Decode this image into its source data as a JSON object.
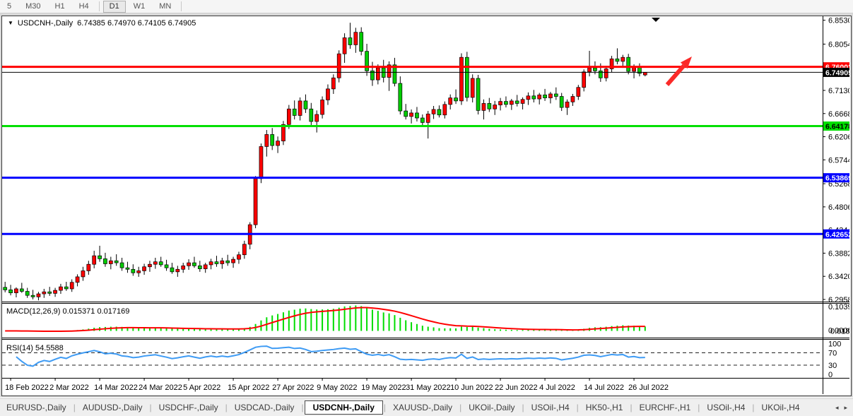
{
  "toolbar": {
    "timeframes": [
      "5",
      "M30",
      "H1",
      "H4",
      "D1",
      "W1",
      "MN"
    ],
    "active_timeframe": "D1"
  },
  "chart": {
    "title_symbol": "USDCNH-,Daily",
    "title_ohlc": "6.74385 6.74970 6.74105 6.74905",
    "caret_icon": "▼"
  },
  "chart_data": {
    "type": "candlestick",
    "symbol": "USDCNH-",
    "timeframe": "Daily",
    "current_bar": {
      "open": 6.74385,
      "high": 6.7497,
      "low": 6.74105,
      "close": 6.74905
    },
    "up_color": "#FF0000",
    "down_color": "#00CC00",
    "price_axis_ticks": [
      "6.85300",
      "6.80540",
      "6.71300",
      "6.66680",
      "6.62060",
      "6.57440",
      "6.52680",
      "6.48060",
      "6.43440",
      "6.38820",
      "6.34200",
      "6.29580"
    ],
    "time_axis_ticks": [
      "18 Feb 2022",
      "2 Mar 2022",
      "14 Mar 2022",
      "24 Mar 2022",
      "5 Apr 2022",
      "15 Apr 2022",
      "27 Apr 2022",
      "9 May 2022",
      "19 May 2022",
      "31 May 2022",
      "10 Jun 2022",
      "22 Jun 2022",
      "4 Jul 2022",
      "14 Jul 2022",
      "26 Jul 2022"
    ],
    "horizontal_lines": [
      {
        "price": 6.76002,
        "label": "6.76002",
        "color": "#FF0000",
        "thickness": 3,
        "text": "#FFFFFF"
      },
      {
        "price": 6.74905,
        "label": "6.74905",
        "color": "#000000",
        "thickness": 1,
        "text": "#FFFFFF"
      },
      {
        "price": 6.64178,
        "label": "6.64178",
        "color": "#00E000",
        "thickness": 3,
        "text": "#000000"
      },
      {
        "price": 6.53869,
        "label": "6.53869",
        "color": "#0000FF",
        "thickness": 3,
        "text": "#FFFFFF"
      },
      {
        "price": 6.42652,
        "label": "6.42652",
        "color": "#0000FF",
        "thickness": 3,
        "text": "#FFFFFF"
      }
    ],
    "candles_ohlc": [
      [
        6.32,
        6.331,
        6.31,
        6.315
      ],
      [
        6.315,
        6.325,
        6.304,
        6.309
      ],
      [
        6.309,
        6.32,
        6.3,
        6.317
      ],
      [
        6.317,
        6.329,
        6.309,
        6.312
      ],
      [
        6.312,
        6.319,
        6.299,
        6.304
      ],
      [
        6.304,
        6.315,
        6.296,
        6.301
      ],
      [
        6.301,
        6.311,
        6.294,
        6.307
      ],
      [
        6.307,
        6.317,
        6.299,
        6.311
      ],
      [
        6.311,
        6.321,
        6.303,
        6.308
      ],
      [
        6.308,
        6.319,
        6.301,
        6.314
      ],
      [
        6.314,
        6.327,
        6.307,
        6.321
      ],
      [
        6.321,
        6.331,
        6.313,
        6.317
      ],
      [
        6.317,
        6.336,
        6.311,
        6.33
      ],
      [
        6.33,
        6.346,
        6.322,
        6.341
      ],
      [
        6.341,
        6.361,
        6.333,
        6.353
      ],
      [
        6.353,
        6.373,
        6.345,
        6.366
      ],
      [
        6.366,
        6.393,
        6.358,
        6.383
      ],
      [
        6.383,
        6.403,
        6.371,
        6.377
      ],
      [
        6.377,
        6.389,
        6.361,
        6.367
      ],
      [
        6.367,
        6.381,
        6.356,
        6.373
      ],
      [
        6.373,
        6.386,
        6.363,
        6.369
      ],
      [
        6.369,
        6.379,
        6.353,
        6.359
      ],
      [
        6.359,
        6.371,
        6.349,
        6.356
      ],
      [
        6.356,
        6.366,
        6.343,
        6.349
      ],
      [
        6.349,
        6.361,
        6.341,
        6.353
      ],
      [
        6.353,
        6.367,
        6.345,
        6.361
      ],
      [
        6.361,
        6.373,
        6.351,
        6.366
      ],
      [
        6.366,
        6.379,
        6.357,
        6.371
      ],
      [
        6.371,
        6.381,
        6.361,
        6.365
      ],
      [
        6.365,
        6.375,
        6.353,
        6.359
      ],
      [
        6.359,
        6.369,
        6.347,
        6.351
      ],
      [
        6.351,
        6.363,
        6.341,
        6.356
      ],
      [
        6.356,
        6.369,
        6.349,
        6.363
      ],
      [
        6.363,
        6.376,
        6.355,
        6.369
      ],
      [
        6.369,
        6.381,
        6.359,
        6.363
      ],
      [
        6.363,
        6.373,
        6.351,
        6.357
      ],
      [
        6.357,
        6.369,
        6.349,
        6.365
      ],
      [
        6.365,
        6.377,
        6.356,
        6.371
      ],
      [
        6.371,
        6.383,
        6.361,
        6.367
      ],
      [
        6.367,
        6.379,
        6.357,
        6.373
      ],
      [
        6.373,
        6.385,
        6.363,
        6.369
      ],
      [
        6.369,
        6.381,
        6.359,
        6.376
      ],
      [
        6.376,
        6.391,
        6.367,
        6.385
      ],
      [
        6.385,
        6.413,
        6.377,
        6.406
      ],
      [
        6.406,
        6.45,
        6.396,
        6.445
      ],
      [
        6.445,
        6.542,
        6.438,
        6.537
      ],
      [
        6.537,
        6.607,
        6.528,
        6.601
      ],
      [
        6.601,
        6.634,
        6.581,
        6.625
      ],
      [
        6.625,
        6.638,
        6.594,
        6.603
      ],
      [
        6.603,
        6.621,
        6.588,
        6.612
      ],
      [
        6.612,
        6.652,
        6.604,
        6.645
      ],
      [
        6.645,
        6.684,
        6.636,
        6.676
      ],
      [
        6.676,
        6.693,
        6.655,
        6.663
      ],
      [
        6.663,
        6.699,
        6.653,
        6.692
      ],
      [
        6.692,
        6.705,
        6.668,
        6.676
      ],
      [
        6.676,
        6.688,
        6.641,
        6.651
      ],
      [
        6.651,
        6.673,
        6.629,
        6.665
      ],
      [
        6.665,
        6.701,
        6.657,
        6.694
      ],
      [
        6.694,
        6.725,
        6.684,
        6.716
      ],
      [
        6.716,
        6.745,
        6.706,
        6.738
      ],
      [
        6.738,
        6.793,
        6.729,
        6.786
      ],
      [
        6.786,
        6.827,
        6.768,
        6.818
      ],
      [
        6.818,
        6.848,
        6.796,
        6.804
      ],
      [
        6.804,
        6.838,
        6.788,
        6.829
      ],
      [
        6.829,
        6.839,
        6.783,
        6.791
      ],
      [
        6.791,
        6.806,
        6.742,
        6.752
      ],
      [
        6.752,
        6.77,
        6.722,
        6.734
      ],
      [
        6.734,
        6.765,
        6.725,
        6.758
      ],
      [
        6.758,
        6.774,
        6.729,
        6.739
      ],
      [
        6.739,
        6.771,
        6.712,
        6.764
      ],
      [
        6.764,
        6.778,
        6.721,
        6.727
      ],
      [
        6.727,
        6.741,
        6.665,
        6.672
      ],
      [
        6.672,
        6.686,
        6.655,
        6.661
      ],
      [
        6.661,
        6.675,
        6.647,
        6.668
      ],
      [
        6.668,
        6.68,
        6.651,
        6.658
      ],
      [
        6.658,
        6.665,
        6.643,
        6.649
      ],
      [
        6.649,
        6.672,
        6.617,
        6.666
      ],
      [
        6.666,
        6.682,
        6.656,
        6.675
      ],
      [
        6.675,
        6.683,
        6.659,
        6.664
      ],
      [
        6.664,
        6.691,
        6.657,
        6.685
      ],
      [
        6.685,
        6.705,
        6.675,
        6.698
      ],
      [
        6.698,
        6.715,
        6.686,
        6.692
      ],
      [
        6.692,
        6.787,
        6.684,
        6.779
      ],
      [
        6.779,
        6.79,
        6.691,
        6.699
      ],
      [
        6.699,
        6.745,
        6.689,
        6.737
      ],
      [
        6.737,
        6.744,
        6.665,
        6.673
      ],
      [
        6.673,
        6.695,
        6.655,
        6.687
      ],
      [
        6.687,
        6.698,
        6.67,
        6.676
      ],
      [
        6.676,
        6.692,
        6.664,
        6.684
      ],
      [
        6.684,
        6.698,
        6.673,
        6.691
      ],
      [
        6.691,
        6.701,
        6.679,
        6.685
      ],
      [
        6.685,
        6.696,
        6.674,
        6.692
      ],
      [
        6.692,
        6.704,
        6.681,
        6.687
      ],
      [
        6.687,
        6.699,
        6.675,
        6.695
      ],
      [
        6.695,
        6.709,
        6.684,
        6.702
      ],
      [
        6.702,
        6.714,
        6.689,
        6.696
      ],
      [
        6.696,
        6.708,
        6.685,
        6.704
      ],
      [
        6.704,
        6.716,
        6.692,
        6.698
      ],
      [
        6.698,
        6.71,
        6.687,
        6.706
      ],
      [
        6.706,
        6.719,
        6.694,
        6.701
      ],
      [
        6.701,
        6.708,
        6.672,
        6.679
      ],
      [
        6.679,
        6.695,
        6.664,
        6.69
      ],
      [
        6.69,
        6.706,
        6.682,
        6.701
      ],
      [
        6.701,
        6.724,
        6.694,
        6.719
      ],
      [
        6.719,
        6.755,
        6.711,
        6.75
      ],
      [
        6.75,
        6.792,
        6.741,
        6.758
      ],
      [
        6.758,
        6.771,
        6.745,
        6.752
      ],
      [
        6.752,
        6.767,
        6.73,
        6.738
      ],
      [
        6.738,
        6.762,
        6.731,
        6.756
      ],
      [
        6.756,
        6.782,
        6.749,
        6.776
      ],
      [
        6.776,
        6.797,
        6.765,
        6.771
      ],
      [
        6.771,
        6.784,
        6.758,
        6.779
      ],
      [
        6.779,
        6.786,
        6.745,
        6.751
      ],
      [
        6.751,
        6.765,
        6.737,
        6.76
      ],
      [
        6.76,
        6.767,
        6.741,
        6.747
      ],
      [
        6.74385,
        6.7497,
        6.74105,
        6.74905
      ]
    ],
    "bars_per_time_tick": 8,
    "first_time_tick_bar": 1,
    "indicators": {
      "macd": {
        "label": "MACD(12,26,9)",
        "value": "0.015371",
        "signal": "0.017169",
        "params": [
          12,
          26,
          9
        ],
        "scale_max_label": "0.103934",
        "scale_bottom_labels": [
          "0.00000",
          "0.018297"
        ],
        "histogram_color": "#00DD00",
        "signal_color": "#FF0000"
      },
      "rsi": {
        "label": "RSI(14)",
        "value": "54.5588",
        "period": 14,
        "levels": [
          "100",
          "70",
          "30",
          "0"
        ],
        "level_lines": [
          70,
          30
        ],
        "line_color": "#3E9BF4"
      }
    },
    "annotations": {
      "arrow": {
        "color": "#FB2A28",
        "direction": "up-right"
      },
      "shift_marker": "▼"
    }
  },
  "tabs": {
    "items": [
      "EURUSD-,Daily",
      "AUDUSD-,Daily",
      "USDCHF-,Daily",
      "USDCAD-,Daily",
      "USDCNH-,Daily",
      "XAUUSD-,Daily",
      "UKOil-,Daily",
      "USOil-,H4",
      "HK50-,H1",
      "EURCHF-,H1",
      "USOil-,H4",
      "UKOil-,H4"
    ],
    "active_index": 4,
    "nav": {
      "left": "◂",
      "right": "▸"
    }
  }
}
